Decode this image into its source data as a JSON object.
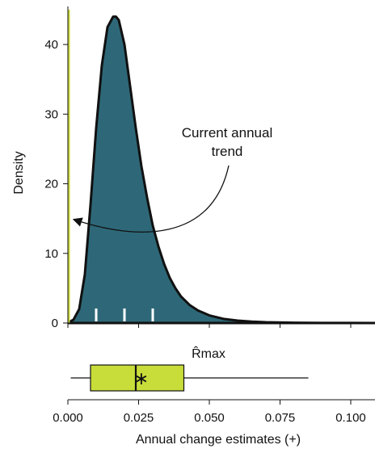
{
  "chart_data": {
    "type": "area",
    "ylabel": "Density",
    "xlabel": "Annual change estimates (+)",
    "rmax_label": "R̂max",
    "xlim": [
      0.0,
      0.11
    ],
    "ylim": [
      0,
      45
    ],
    "x_ticks": [
      0.0,
      0.025,
      0.05,
      0.075,
      0.1
    ],
    "x_tick_labels": [
      "0.000",
      "0.025",
      "0.050",
      "0.075",
      "0.100"
    ],
    "y_ticks": [
      0,
      10,
      20,
      30,
      40
    ],
    "y_tick_labels": [
      "0",
      "10",
      "20",
      "30",
      "40"
    ],
    "density": {
      "x": [
        0.0,
        0.002,
        0.004,
        0.006,
        0.008,
        0.01,
        0.012,
        0.014,
        0.016,
        0.017,
        0.018,
        0.02,
        0.022,
        0.024,
        0.026,
        0.028,
        0.03,
        0.032,
        0.034,
        0.036,
        0.038,
        0.04,
        0.043,
        0.046,
        0.05,
        0.055,
        0.06,
        0.065,
        0.07,
        0.08,
        0.09,
        0.1,
        0.11
      ],
      "y": [
        0,
        0.5,
        2,
        7,
        17,
        28,
        37,
        42.5,
        44,
        44,
        43.5,
        40,
        34,
        28,
        22.5,
        18,
        14,
        11,
        8.5,
        6.5,
        5,
        3.8,
        2.6,
        1.8,
        1.1,
        0.6,
        0.35,
        0.2,
        0.12,
        0.05,
        0.02,
        0.01,
        0
      ]
    },
    "rug_ticks": [
      0.01,
      0.02,
      0.03
    ],
    "current_trend_x": 0.0,
    "annotation": {
      "line1": "Current annual",
      "line2": "trend"
    },
    "boxplot": {
      "whisker_low": 0.001,
      "q1": 0.008,
      "median": 0.024,
      "q3": 0.041,
      "whisker_high": 0.085,
      "mean": 0.026
    },
    "colors": {
      "fill": "#2e6878",
      "outline": "#111111",
      "trend_line": "#c8d83a",
      "box_fill": "#c8dd3a",
      "rug": "#ffffff"
    }
  }
}
